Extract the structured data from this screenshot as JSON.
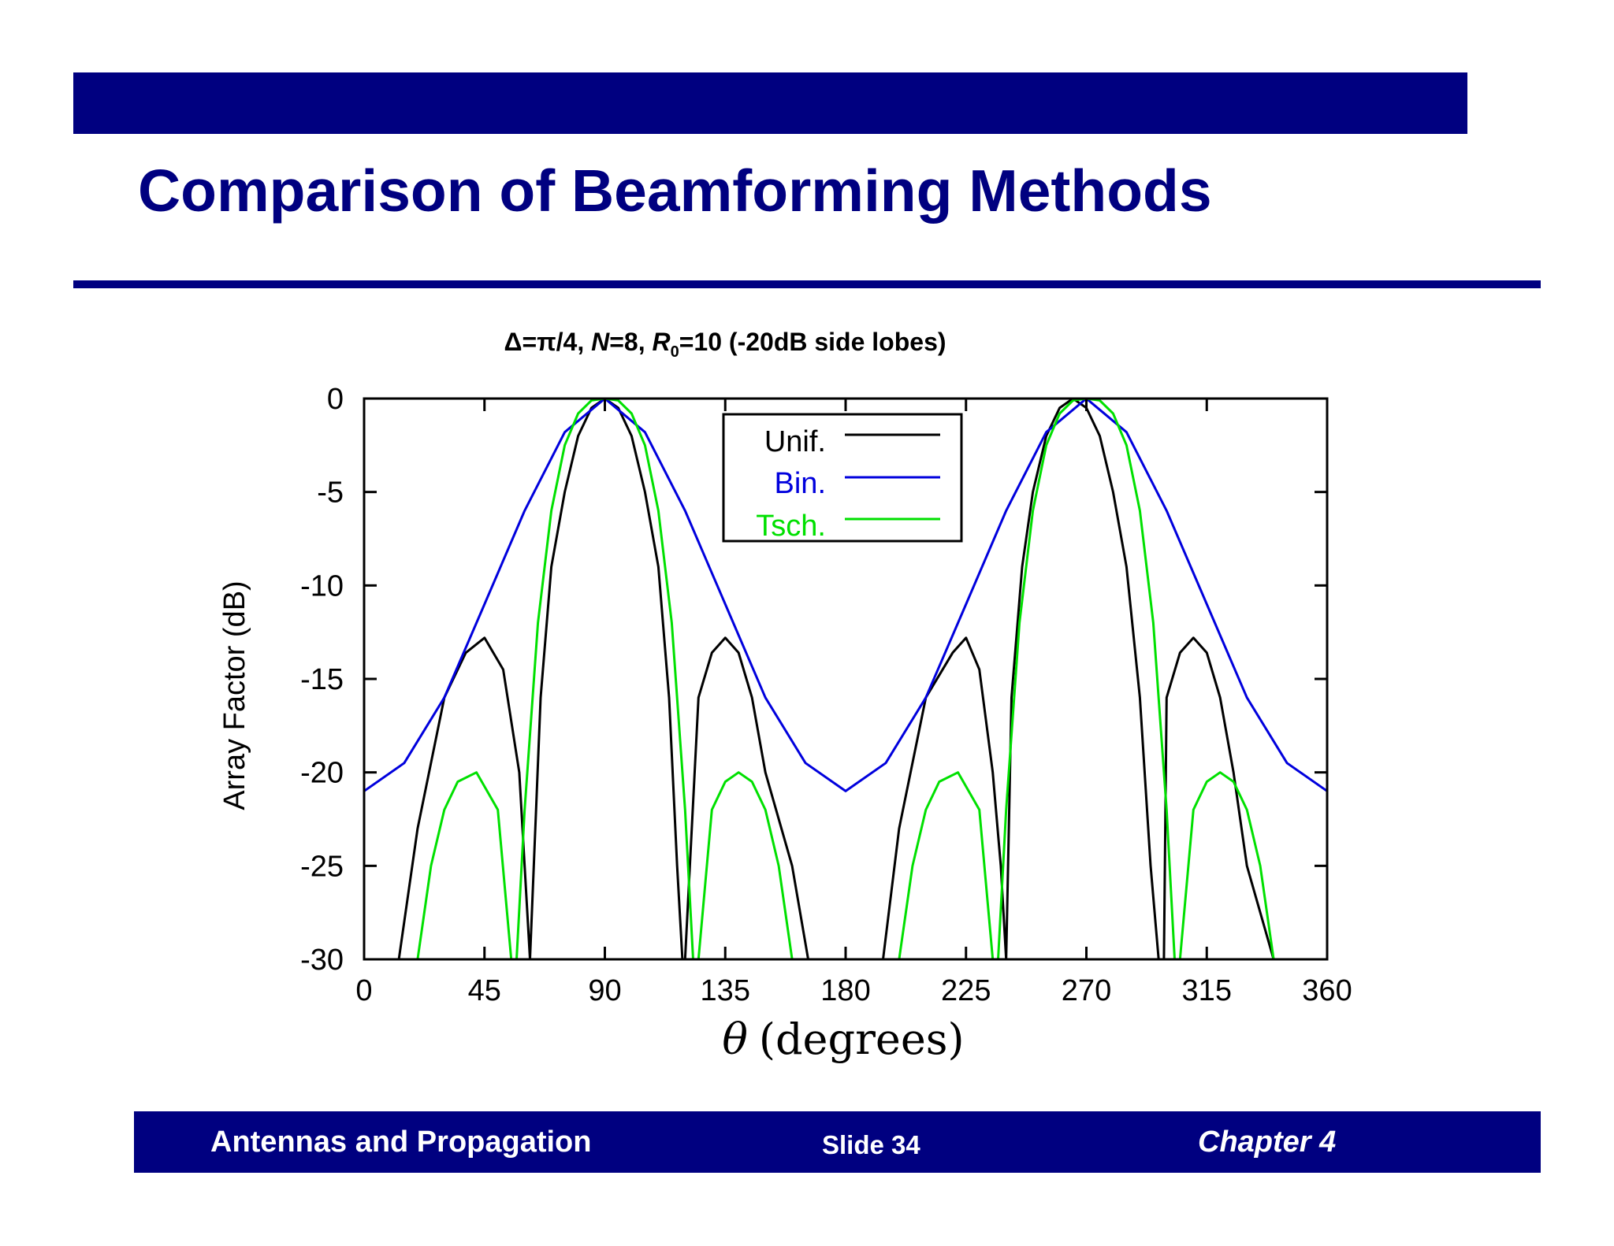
{
  "slide": {
    "title": "Comparison of Beamforming Methods",
    "footer": {
      "left": "Antennas and Propagation",
      "middle": "Slide 34",
      "right": "Chapter 4"
    }
  },
  "colors": {
    "brand": "#000080",
    "unif": "#000000",
    "bin": "#0000dd",
    "tsch": "#00e000"
  },
  "chart_data": {
    "type": "line",
    "title_parts": {
      "a": "Δ=π/4, ",
      "b": "N",
      "c": "=8, ",
      "d": "R",
      "e": "0",
      "f": "=10 (-20dB side lobes)"
    },
    "xlabel_symbol": "θ",
    "xlabel_text": "(degrees)",
    "ylabel": "Array Factor (dB)",
    "xlim": [
      0,
      360
    ],
    "ylim": [
      -30,
      0
    ],
    "x_ticks": [
      0,
      45,
      90,
      135,
      180,
      225,
      270,
      315,
      360
    ],
    "y_ticks": [
      0,
      -5,
      -10,
      -15,
      -20,
      -25,
      -30
    ],
    "x_tick_labels": [
      "0",
      "45",
      "90",
      "135",
      "180",
      "225",
      "270",
      "315",
      "360"
    ],
    "y_tick_labels": [
      "0",
      "-5",
      "-10",
      "-15",
      "-20",
      "-25",
      "-30"
    ],
    "legend_position": "top-center",
    "series": [
      {
        "name": "Unif.",
        "color": "#000000",
        "x": [
          0,
          13,
          20,
          30,
          38,
          45,
          52,
          58,
          60,
          62,
          66,
          70,
          75,
          80,
          85,
          90,
          95,
          100,
          105,
          110,
          114,
          117,
          119,
          120,
          125,
          130,
          135,
          140,
          145,
          150,
          160,
          166,
          170,
          180,
          190,
          194,
          200,
          210,
          220,
          225,
          230,
          235,
          238,
          240,
          242,
          246,
          250,
          255,
          260,
          265,
          270,
          275,
          280,
          285,
          290,
          294,
          297,
          299,
          300,
          305,
          310,
          315,
          320,
          325,
          330,
          340,
          346,
          350,
          360
        ],
        "y": [
          null,
          -30,
          -23,
          -16,
          -13.6,
          -12.8,
          -14.5,
          -20,
          -25,
          -30,
          -16,
          -9,
          -5,
          -2,
          -0.5,
          0,
          -0.5,
          -2,
          -5,
          -9,
          -16,
          -25,
          -30,
          -30,
          -16,
          -13.6,
          -12.8,
          -13.6,
          -16,
          -20,
          -25,
          -30,
          null,
          null,
          null,
          -30,
          -23,
          -16,
          -13.6,
          -12.8,
          -14.5,
          -20,
          -25,
          -30,
          -16,
          -9,
          -5,
          -2,
          -0.5,
          0,
          -0.5,
          -2,
          -5,
          -9,
          -16,
          -25,
          -30,
          -30,
          -16,
          -13.6,
          -12.8,
          -13.6,
          -16,
          -20,
          -25,
          -30,
          null,
          null,
          null
        ]
      },
      {
        "name": "Bin.",
        "color": "#0000dd",
        "x": [
          0,
          15,
          30,
          45,
          60,
          75,
          90,
          105,
          120,
          135,
          150,
          165,
          180,
          195,
          210,
          225,
          240,
          255,
          270,
          285,
          300,
          315,
          330,
          345,
          360
        ],
        "y": [
          -21,
          -19.5,
          -16,
          -11,
          -6,
          -1.8,
          0,
          -1.8,
          -6,
          -11,
          -16,
          -19.5,
          -21,
          -19.5,
          -16,
          -11,
          -6,
          -1.8,
          0,
          -1.8,
          -6,
          -11,
          -16,
          -19.5,
          -21
        ]
      },
      {
        "name": "Tsch.",
        "color": "#00e000",
        "x": [
          20,
          25,
          30,
          35,
          42,
          50,
          55,
          57,
          60,
          65,
          70,
          75,
          80,
          85,
          90,
          95,
          100,
          105,
          110,
          115,
          120,
          123,
          125,
          130,
          135,
          140,
          145,
          150,
          155,
          160,
          200,
          205,
          210,
          215,
          222,
          230,
          235,
          237,
          240,
          245,
          250,
          255,
          260,
          265,
          270,
          275,
          280,
          285,
          290,
          295,
          300,
          303,
          305,
          310,
          315,
          320,
          325,
          330,
          335,
          340
        ],
        "y": [
          -30,
          -25,
          -22,
          -20.5,
          -20,
          -22,
          -30,
          -30,
          -22,
          -12,
          -6,
          -2.5,
          -0.8,
          -0.1,
          0,
          -0.1,
          -0.8,
          -2.5,
          -6,
          -12,
          -22,
          -30,
          -30,
          -22,
          -20.5,
          -20,
          -20.5,
          -22,
          -25,
          -30,
          -30,
          -25,
          -22,
          -20.5,
          -20,
          -22,
          -30,
          -30,
          -22,
          -12,
          -6,
          -2.5,
          -0.8,
          -0.1,
          0,
          -0.1,
          -0.8,
          -2.5,
          -6,
          -12,
          -22,
          -30,
          -30,
          -22,
          -20.5,
          -20,
          -20.5,
          -22,
          -25,
          -30
        ]
      }
    ]
  }
}
